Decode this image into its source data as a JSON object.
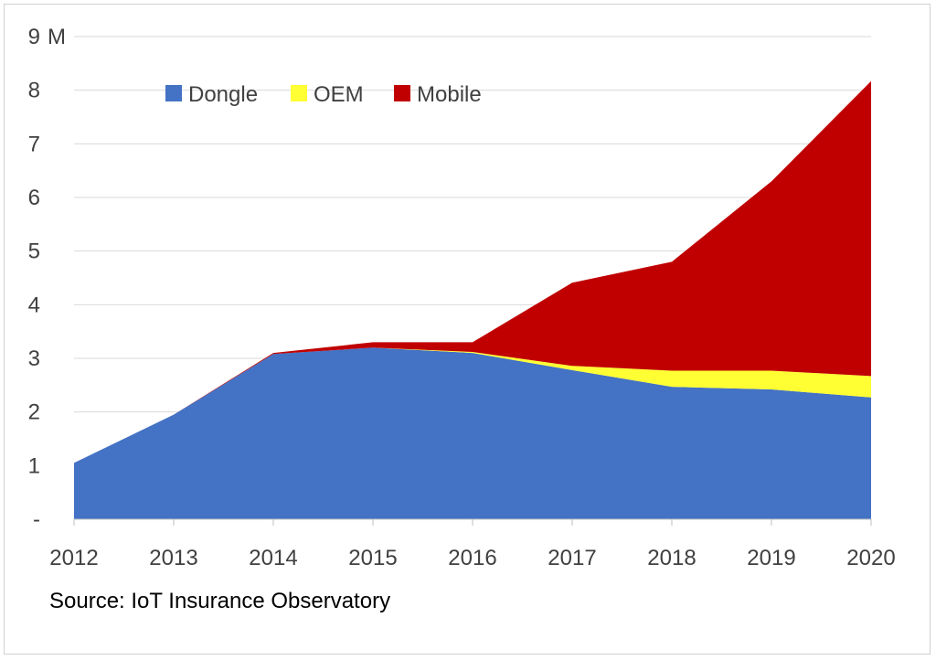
{
  "chart_data": {
    "type": "area",
    "stacked": true,
    "x": [
      "2012",
      "2013",
      "2014",
      "2015",
      "2016",
      "2017",
      "2018",
      "2019",
      "2020"
    ],
    "series": [
      {
        "name": "Dongle",
        "color": "#4472C4",
        "values": [
          1.05,
          1.95,
          3.08,
          3.2,
          3.1,
          2.78,
          2.47,
          2.42,
          2.27
        ]
      },
      {
        "name": "OEM",
        "color": "#FFFF33",
        "values": [
          0,
          0,
          0,
          0,
          0.02,
          0.08,
          0.3,
          0.35,
          0.4
        ]
      },
      {
        "name": "Mobile",
        "color": "#C00000",
        "values": [
          0,
          0,
          0.02,
          0.1,
          0.18,
          1.55,
          2.03,
          3.53,
          5.5
        ]
      }
    ],
    "ylim": [
      0,
      9
    ],
    "y_ticks": [
      "-",
      "1",
      "2",
      "3",
      "4",
      "5",
      "6",
      "7",
      "8",
      "9"
    ],
    "y_unit": "M",
    "grid": true,
    "legend_position": "top-left"
  },
  "source": "Source: IoT Insurance Observatory"
}
